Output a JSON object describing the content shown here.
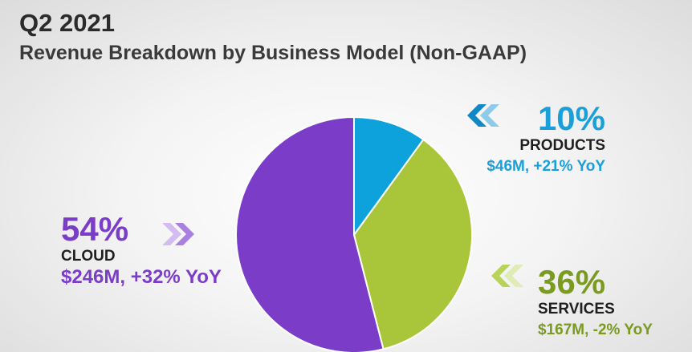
{
  "header": {
    "title": "Q2 2021",
    "subtitle": "Revenue Breakdown by Business Model (Non-GAAP)"
  },
  "chart_data": {
    "type": "pie",
    "title": "Q2 2021",
    "subtitle": "Revenue Breakdown by Business Model (Non-GAAP)",
    "start": "12 o'clock, clockwise",
    "slices": [
      {
        "name": "PRODUCTS",
        "percent": 10,
        "percent_label": "10%",
        "value": 46,
        "detail": "$46M, +21% YoY",
        "color": "#0da2db"
      },
      {
        "name": "SERVICES",
        "percent": 36,
        "percent_label": "36%",
        "value": 167,
        "detail": "$167M, -2% YoY",
        "color": "#a9c539"
      },
      {
        "name": "CLOUD",
        "percent": 54,
        "percent_label": "54%",
        "value": 246,
        "detail": "$246M, +32% YoY",
        "color": "#7b3cc8"
      }
    ],
    "text_colors": {
      "PRODUCTS": "#1b9fd8",
      "SERVICES": "#7a9a20",
      "CLOUD": "#7b3cc8"
    },
    "chevron_colors": {
      "PRODUCTS": "#1188c5",
      "SERVICES": "#b8d35a",
      "CLOUD": "#a97fe0"
    }
  }
}
